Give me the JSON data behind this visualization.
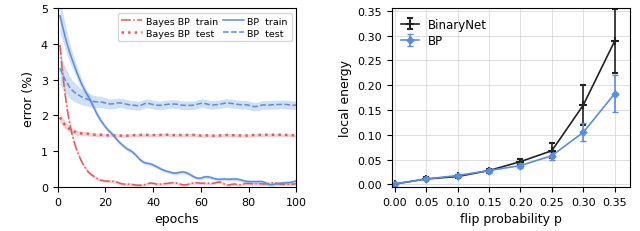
{
  "left": {
    "xlabel": "epochs",
    "ylabel": "error (%)",
    "xlim": [
      0,
      100
    ],
    "ylim": [
      0,
      5
    ],
    "legend_labels": [
      "Bayes BP  train",
      "Bayes BP  test",
      "BP  train",
      "BP  test"
    ],
    "red_color": "#d95f5f",
    "blue_color": "#5b8dd9",
    "epochs_dense": 101
  },
  "right": {
    "flip_prob": [
      0.0,
      0.05,
      0.1,
      0.15,
      0.2,
      0.25,
      0.3,
      0.35
    ],
    "binarynet_mean": [
      0.001,
      0.011,
      0.016,
      0.028,
      0.046,
      0.068,
      0.16,
      0.289
    ],
    "binarynet_err_low": [
      0.0005,
      0.003,
      0.003,
      0.004,
      0.005,
      0.015,
      0.04,
      0.065
    ],
    "binarynet_err_high": [
      0.0005,
      0.003,
      0.003,
      0.004,
      0.005,
      0.015,
      0.04,
      0.065
    ],
    "bp_mean": [
      0.001,
      0.011,
      0.018,
      0.028,
      0.038,
      0.058,
      0.105,
      0.183
    ],
    "bp_err_low": [
      0.0005,
      0.003,
      0.003,
      0.004,
      0.005,
      0.008,
      0.018,
      0.038
    ],
    "bp_err_high": [
      0.0005,
      0.003,
      0.003,
      0.004,
      0.005,
      0.008,
      0.018,
      0.038
    ],
    "xlabel": "flip probability p",
    "ylabel": "local energy",
    "xlim": [
      -0.005,
      0.375
    ],
    "ylim": [
      -0.005,
      0.355
    ],
    "black_color": "#222222",
    "blue_color": "#5b8dd9"
  }
}
